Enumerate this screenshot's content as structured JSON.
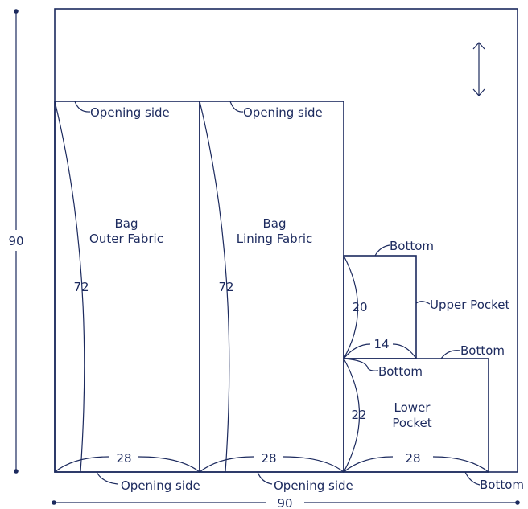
{
  "colors": {
    "ink": "#1c2a5e",
    "background": "#ffffff"
  },
  "icons": {
    "grain": "double-arrow-icon"
  },
  "overall": {
    "height_label": "90",
    "width_label": "90"
  },
  "pieces": {
    "outer": {
      "name_line1": "Bag",
      "name_line2": "Outer Fabric",
      "height": "72",
      "width": "28",
      "top_label": "Opening side",
      "bottom_label": "Opening side"
    },
    "lining": {
      "name_line1": "Bag",
      "name_line2": "Lining Fabric",
      "height": "72",
      "width": "28",
      "top_label": "Opening side",
      "bottom_label": "Opening side"
    },
    "upper_pocket": {
      "name": "Upper Pocket",
      "height": "20",
      "width": "14",
      "top_label": "Bottom",
      "bottom_label": "Bottom"
    },
    "lower_pocket": {
      "name_line1": "Lower",
      "name_line2": "Pocket",
      "height": "22",
      "width": "28",
      "top_label": "Bottom",
      "bottom_label": "Bottom"
    }
  }
}
